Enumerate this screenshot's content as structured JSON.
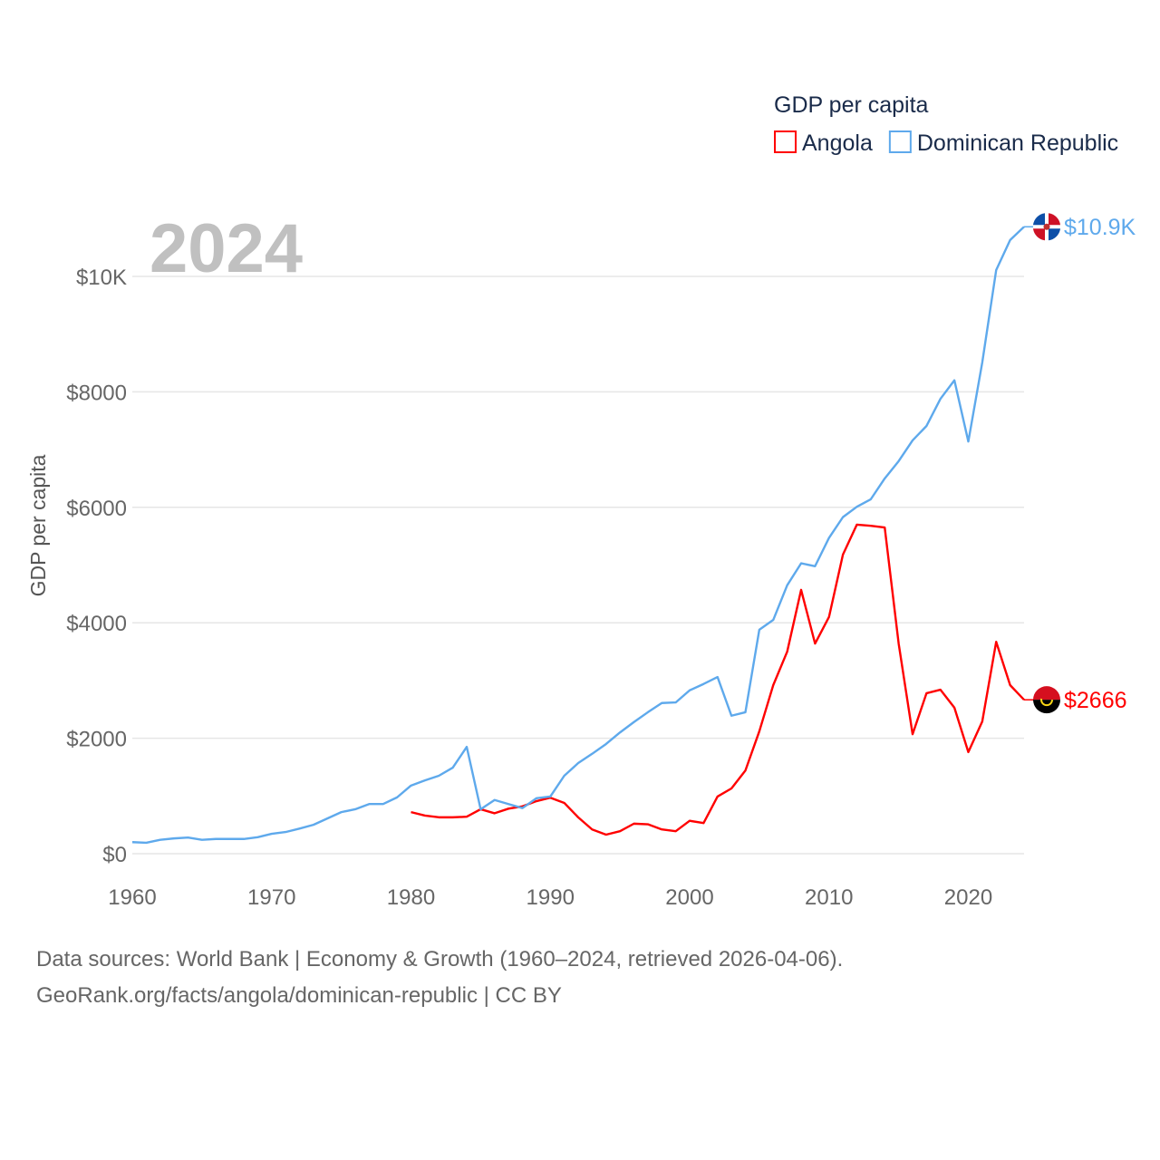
{
  "chart_data": {
    "type": "line",
    "title": "GDP per capita",
    "ylabel": "GDP per capita",
    "xlabel": "",
    "year_label": "2024",
    "xlim": [
      1960,
      2024
    ],
    "ylim": [
      0,
      10000
    ],
    "yticks": [
      {
        "v": 0,
        "label": "$0"
      },
      {
        "v": 2000,
        "label": "$2000"
      },
      {
        "v": 4000,
        "label": "$4000"
      },
      {
        "v": 6000,
        "label": "$6000"
      },
      {
        "v": 8000,
        "label": "$8000"
      },
      {
        "v": 10000,
        "label": "$10K"
      }
    ],
    "xticks": [
      {
        "v": 1960,
        "label": "1960"
      },
      {
        "v": 1970,
        "label": "1970"
      },
      {
        "v": 1980,
        "label": "1980"
      },
      {
        "v": 1990,
        "label": "1990"
      },
      {
        "v": 2000,
        "label": "2000"
      },
      {
        "v": 2010,
        "label": "2010"
      },
      {
        "v": 2020,
        "label": "2020"
      }
    ],
    "legend_position": "top-right",
    "grid": true,
    "series": [
      {
        "name": "Angola",
        "color": "#ff0000",
        "end_label": "$2666",
        "flag": "angola",
        "start": 1980,
        "values": [
          720,
          660,
          630,
          630,
          640,
          770,
          700,
          780,
          820,
          910,
          970,
          880,
          630,
          420,
          330,
          390,
          520,
          510,
          420,
          390,
          570,
          530,
          990,
          1130,
          1440,
          2120,
          2920,
          3500,
          4570,
          3640,
          4100,
          5180,
          5700,
          5680,
          5650,
          3640,
          2070,
          2780,
          2840,
          2530,
          1760,
          2290,
          3670,
          2920,
          2666
        ]
      },
      {
        "name": "Dominican Republic",
        "color": "#5ea9ec",
        "end_label": "$10.9K",
        "flag": "dominican-republic",
        "start": 1960,
        "values": [
          200,
          190,
          240,
          265,
          280,
          240,
          255,
          255,
          255,
          285,
          345,
          375,
          435,
          500,
          610,
          720,
          770,
          860,
          860,
          975,
          1180,
          1270,
          1350,
          1490,
          1850,
          770,
          930,
          860,
          790,
          960,
          990,
          1350,
          1570,
          1730,
          1900,
          2100,
          2280,
          2450,
          2610,
          2620,
          2830,
          2940,
          3060,
          2390,
          2450,
          3880,
          4050,
          4650,
          5030,
          4980,
          5470,
          5830,
          6010,
          6140,
          6500,
          6800,
          7160,
          7410,
          7880,
          8200,
          7140,
          8510,
          10110,
          10630,
          10860
        ]
      }
    ]
  },
  "footer": {
    "line1": "Data sources: World Bank | Economy & Growth (1960–2024, retrieved 2026-04-06).",
    "line2": "GeoRank.org/facts/angola/dominican-republic | CC BY"
  }
}
